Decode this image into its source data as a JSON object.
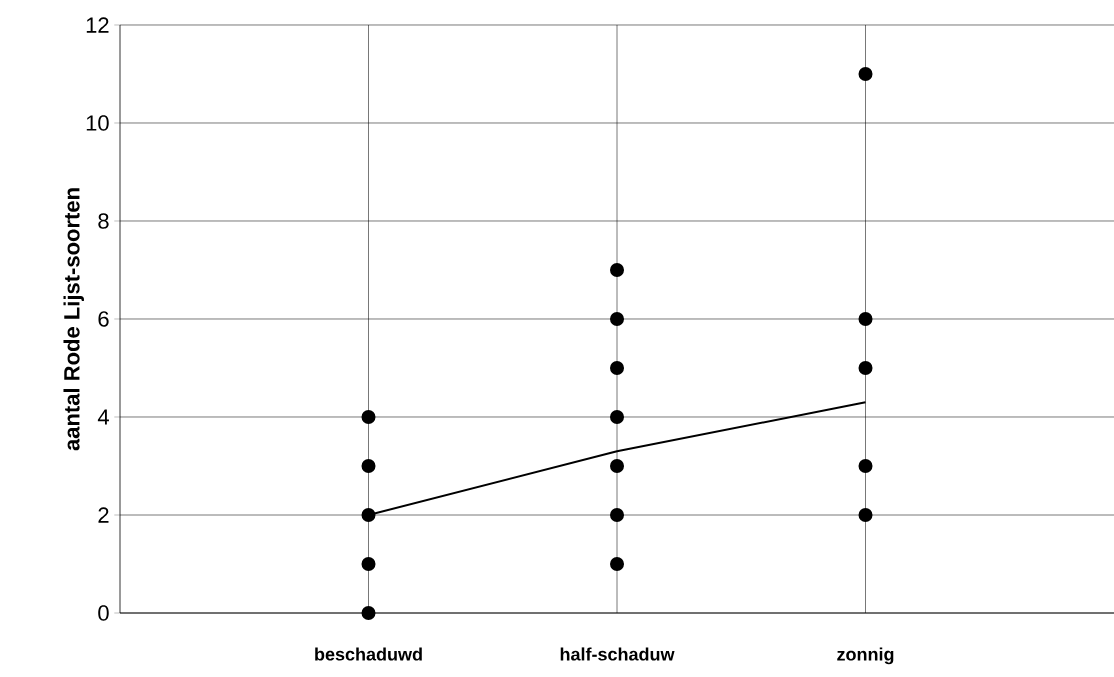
{
  "chart_data": {
    "type": "scatter",
    "ylabel": "aantal Rode Lijst-soorten",
    "categories": [
      "beschaduwd",
      "half-schaduw",
      "zonnig"
    ],
    "ylim": [
      0,
      12
    ],
    "yticks": [
      0,
      2,
      4,
      6,
      8,
      10,
      12
    ],
    "grid": true,
    "series": [
      {
        "color": "#000000",
        "marker": "circle",
        "x": [
          "beschaduwd",
          "beschaduwd",
          "beschaduwd",
          "beschaduwd",
          "beschaduwd",
          "half-schaduw",
          "half-schaduw",
          "half-schaduw",
          "half-schaduw",
          "half-schaduw",
          "half-schaduw",
          "half-schaduw",
          "zonnig",
          "zonnig",
          "zonnig",
          "zonnig",
          "zonnig"
        ],
        "values": [
          0,
          1,
          2,
          3,
          4,
          1,
          2,
          3,
          4,
          5,
          6,
          7,
          2,
          3,
          5,
          6,
          11
        ]
      },
      {
        "type": "line",
        "color": "#000000",
        "marker": "none",
        "line_style": "solid",
        "x": [
          "beschaduwd",
          "half-schaduw",
          "zonnig"
        ],
        "values": [
          2.0,
          3.3,
          4.3
        ]
      }
    ]
  }
}
